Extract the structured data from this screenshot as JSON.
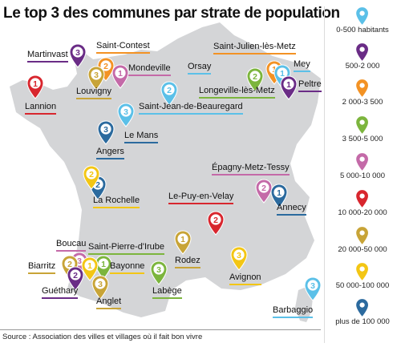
{
  "title": "Le top 3 des communes par strate de population",
  "source": "Source : Association des villes et villages où il fait bon vivre",
  "legend": [
    {
      "label": "0-500 habitants",
      "color": "#5bc0e8"
    },
    {
      "label": "500-2 000",
      "color": "#6a2c86"
    },
    {
      "label": "2 000-3 500",
      "color": "#f39224"
    },
    {
      "label": "3 500-5 000",
      "color": "#7cb53d"
    },
    {
      "label": "5 000-10 000",
      "color": "#c46aa8"
    },
    {
      "label": "10 000-20 000",
      "color": "#d8262e"
    },
    {
      "label": "20 000-50 000",
      "color": "#c8a437"
    },
    {
      "label": "50 000-100 000",
      "color": "#f3c614"
    },
    {
      "label": "plus de 100 000",
      "color": "#2b6a9e"
    }
  ],
  "cities": [
    {
      "name": "Martinvast",
      "rank": 3,
      "color": "#6a2c86"
    },
    {
      "name": "Saint-Contest",
      "rank": 2,
      "color": "#f39224"
    },
    {
      "name": "Mondeville",
      "rank": 1,
      "color": "#c46aa8"
    },
    {
      "name": "Louvigny",
      "rank": 3,
      "color": "#c8a437"
    },
    {
      "name": "Lannion",
      "rank": 1,
      "color": "#d8262e"
    },
    {
      "name": "Orsay",
      "rank": 2,
      "color": "#5bc0e8"
    },
    {
      "name": "Saint-Jean-de-Beauregard",
      "rank": 3,
      "color": "#5bc0e8"
    },
    {
      "name": "Saint-Julien-lès-Metz",
      "rank": 1,
      "color": "#f39224"
    },
    {
      "name": "Mey",
      "rank": 1,
      "color": "#5bc0e8"
    },
    {
      "name": "Longeville-lès-Metz",
      "rank": 2,
      "color": "#7cb53d"
    },
    {
      "name": "Peltre",
      "rank": 1,
      "color": "#6a2c86"
    },
    {
      "name": "Le Mans",
      "rank": 3,
      "color": "#2b6a9e"
    },
    {
      "name": "Angers",
      "rank": 2,
      "color": "#2b6a9e"
    },
    {
      "name": "La Rochelle",
      "rank": 2,
      "color": "#f3c614"
    },
    {
      "name": "Épagny-Metz-Tessy",
      "rank": 2,
      "color": "#c46aa8"
    },
    {
      "name": "Annecy",
      "rank": 1,
      "color": "#2b6a9e"
    },
    {
      "name": "Le-Puy-en-Velay",
      "rank": 2,
      "color": "#d8262e"
    },
    {
      "name": "Boucau",
      "rank": 3,
      "color": "#c46aa8"
    },
    {
      "name": "Saint-Pierre-d'Irube",
      "rank": 1,
      "color": "#7cb53d"
    },
    {
      "name": "Biarritz",
      "rank": 2,
      "color": "#c8a437"
    },
    {
      "name": "Bayonne",
      "rank": 1,
      "color": "#f3c614"
    },
    {
      "name": "Guéthary",
      "rank": 2,
      "color": "#6a2c86"
    },
    {
      "name": "Anglet",
      "rank": 3,
      "color": "#c8a437"
    },
    {
      "name": "Rodez",
      "rank": 1,
      "color": "#c8a437"
    },
    {
      "name": "Labège",
      "rank": 3,
      "color": "#7cb53d"
    },
    {
      "name": "Avignon",
      "rank": 3,
      "color": "#f3c614"
    },
    {
      "name": "Barbaggio",
      "rank": 3,
      "color": "#5bc0e8"
    }
  ]
}
